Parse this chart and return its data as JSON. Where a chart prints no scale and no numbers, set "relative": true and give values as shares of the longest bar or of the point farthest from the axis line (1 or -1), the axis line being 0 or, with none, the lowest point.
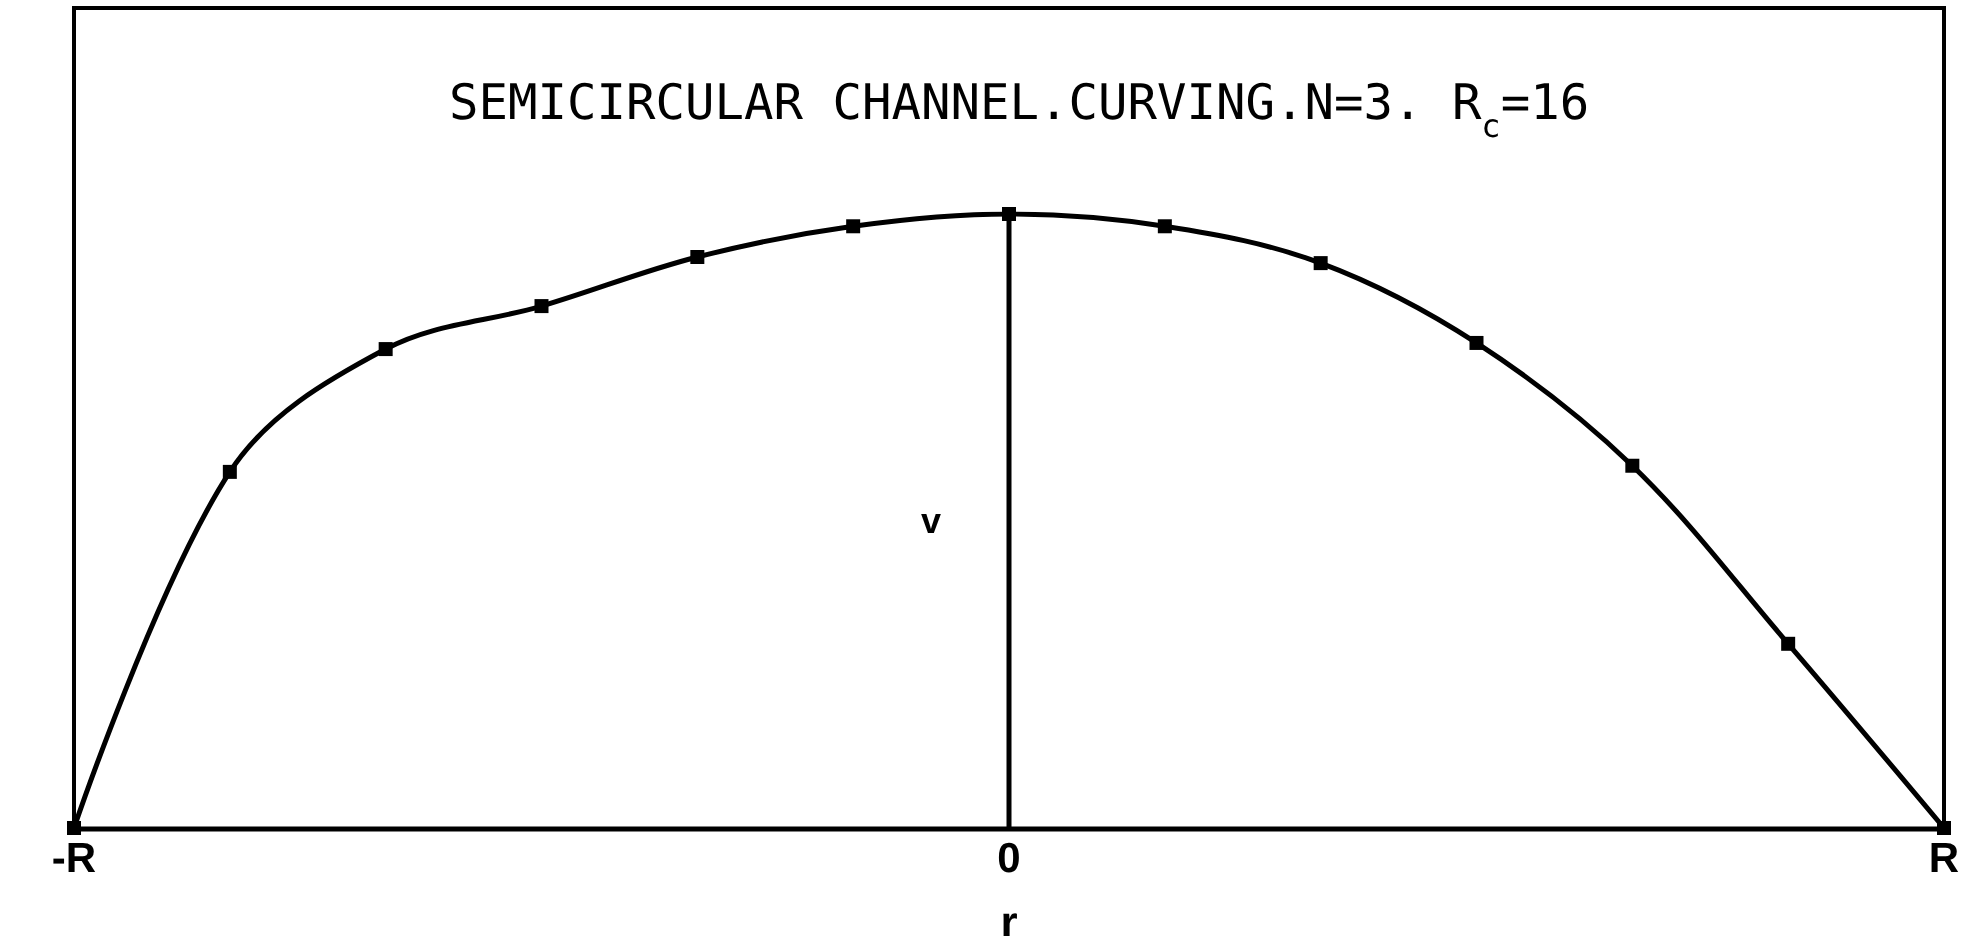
{
  "chart_data": {
    "type": "line",
    "title": "SEMICIRCULAR CHANNEL.CURVING.N=3. R$_{c}$=16",
    "xlabel": "r",
    "ylabel": "v",
    "categories": [
      "-R",
      null,
      null,
      null,
      null,
      null,
      "0",
      null,
      null,
      null,
      null,
      null,
      "R"
    ],
    "values": [
      0,
      0.58,
      0.78,
      0.85,
      0.93,
      0.98,
      1,
      0.98,
      0.92,
      0.79,
      0.59,
      0.3,
      0
    ],
    "color": "#000000",
    "relative": true,
    "marker": "square",
    "line_style": "solid"
  }
}
